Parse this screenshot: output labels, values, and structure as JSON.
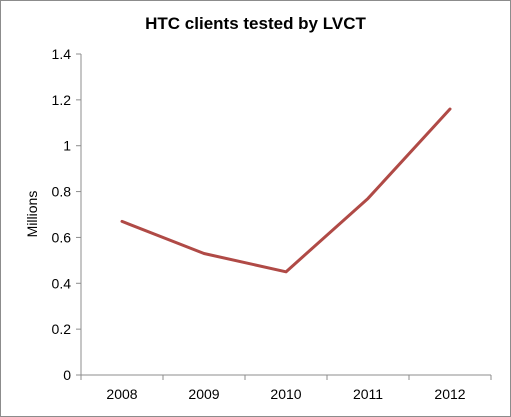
{
  "chart_data": {
    "type": "line",
    "title": "HTC clients tested by LVCT",
    "xlabel": "",
    "ylabel": "Millions",
    "categories": [
      "2008",
      "2009",
      "2010",
      "2011",
      "2012"
    ],
    "series": [
      {
        "values": [
          0.67,
          0.53,
          0.45,
          0.77,
          1.16
        ],
        "color": "#b04a46"
      }
    ],
    "ylim": [
      0,
      1.4
    ],
    "yticks": [
      "0",
      "0.2",
      "0.4",
      "0.6",
      "0.8",
      "1",
      "1.2",
      "1.4"
    ],
    "grid": false,
    "legend": "none"
  }
}
